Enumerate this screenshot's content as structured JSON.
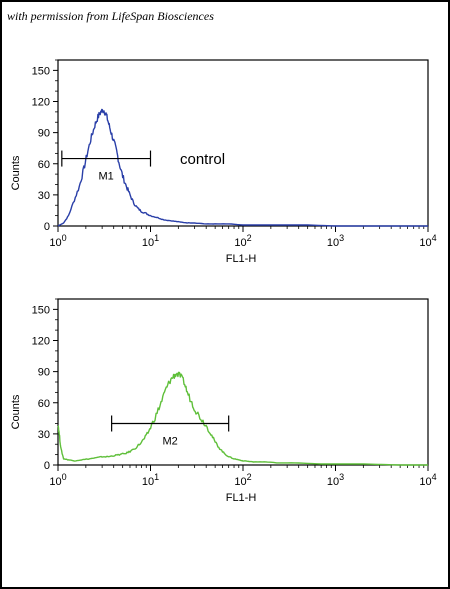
{
  "credit": "with permission from LifeSpan Biosciences",
  "chart_data": [
    {
      "type": "line",
      "title": "",
      "xlabel": "FL1-H",
      "ylabel": "Counts",
      "xscale": "log",
      "xlim": [
        1,
        10000
      ],
      "ylim": [
        0,
        160
      ],
      "xticks": [
        {
          "base": "10",
          "exp": "0"
        },
        {
          "base": "10",
          "exp": "1"
        },
        {
          "base": "10",
          "exp": "2"
        },
        {
          "base": "10",
          "exp": "3"
        },
        {
          "base": "10",
          "exp": "4"
        }
      ],
      "yticks": [
        "0",
        "30",
        "60",
        "90",
        "120",
        "150"
      ],
      "grid": false,
      "color": "#2a3fa8",
      "annotation": "control",
      "gate": {
        "label": "M1",
        "from": 1.1,
        "to": 10,
        "y": 65
      },
      "series": [
        {
          "name": "",
          "x": [
            1,
            1.15,
            1.3,
            1.5,
            1.7,
            1.9,
            2.1,
            2.3,
            2.5,
            2.7,
            2.9,
            3.1,
            3.3,
            3.5,
            3.7,
            4.0,
            4.3,
            4.6,
            5.0,
            5.5,
            6.0,
            6.6,
            7.3,
            8.0,
            9.0,
            10,
            12,
            14,
            17,
            20,
            25,
            30,
            40,
            50,
            70,
            100,
            150,
            200,
            300,
            500,
            1000,
            2000,
            5000,
            10000
          ],
          "y": [
            0,
            3,
            10,
            25,
            38,
            55,
            72,
            86,
            97,
            105,
            110,
            112,
            108,
            100,
            92,
            82,
            72,
            60,
            48,
            38,
            30,
            22,
            17,
            14,
            12,
            10,
            8,
            6,
            5,
            4,
            3,
            3,
            2,
            2,
            2,
            1,
            1,
            1,
            1,
            1,
            0,
            0,
            0,
            0
          ]
        }
      ]
    },
    {
      "type": "line",
      "title": "",
      "xlabel": "FL1-H",
      "ylabel": "Counts",
      "xscale": "log",
      "xlim": [
        1,
        10000
      ],
      "ylim": [
        0,
        160
      ],
      "xticks": [
        {
          "base": "10",
          "exp": "0"
        },
        {
          "base": "10",
          "exp": "1"
        },
        {
          "base": "10",
          "exp": "2"
        },
        {
          "base": "10",
          "exp": "3"
        },
        {
          "base": "10",
          "exp": "4"
        }
      ],
      "yticks": [
        "0",
        "30",
        "60",
        "90",
        "120",
        "150"
      ],
      "grid": false,
      "color": "#5fbf3a",
      "annotation": "",
      "gate": {
        "label": "M2",
        "from": 3.8,
        "to": 70,
        "y": 40
      },
      "series": [
        {
          "name": "",
          "x": [
            1,
            1.03,
            1.08,
            1.15,
            1.3,
            1.5,
            1.8,
            2.2,
            2.6,
            3.0,
            3.5,
            4.0,
            4.6,
            5.3,
            6.0,
            7.0,
            8.0,
            9.0,
            10,
            11.5,
            13,
            14.5,
            16,
            17.5,
            19,
            21,
            23,
            25,
            28,
            31,
            35,
            40,
            45,
            50,
            56,
            63,
            70,
            80,
            90,
            100,
            130,
            170,
            250,
            400,
            700,
            1000,
            2000,
            5000,
            10000
          ],
          "y": [
            40,
            30,
            15,
            6,
            5,
            4,
            5,
            6,
            7,
            8,
            8,
            9,
            10,
            11,
            13,
            17,
            22,
            28,
            36,
            48,
            60,
            72,
            80,
            85,
            88,
            86,
            80,
            70,
            60,
            52,
            45,
            38,
            30,
            22,
            16,
            11,
            8,
            6,
            5,
            4,
            3,
            3,
            2,
            2,
            1,
            1,
            1,
            0,
            0
          ]
        }
      ]
    }
  ]
}
